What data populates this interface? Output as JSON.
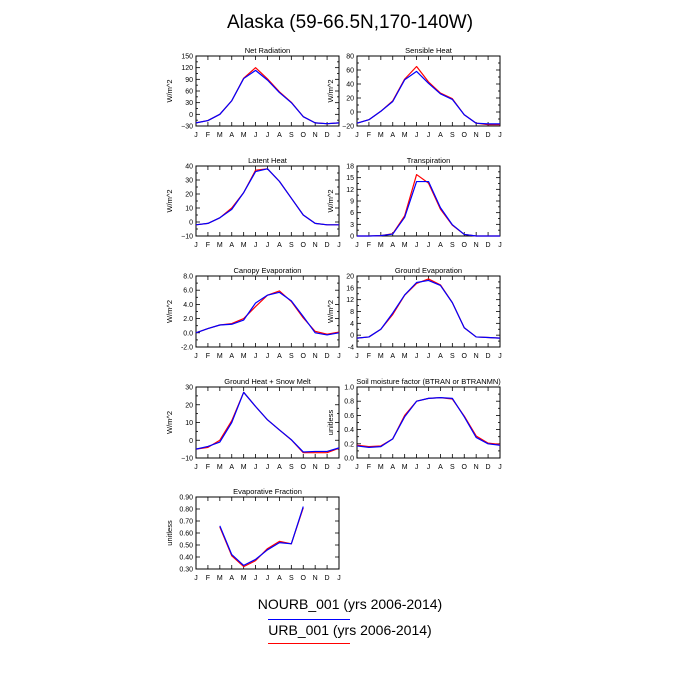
{
  "title": "Alaska (59-66.5N,170-140W)",
  "months": [
    "J",
    "F",
    "M",
    "A",
    "M",
    "J",
    "J",
    "A",
    "S",
    "O",
    "N",
    "D",
    "J"
  ],
  "legend": [
    {
      "name": "NOURB_001 (yrs 2006-2014)",
      "color": "#0000ff"
    },
    {
      "name": "URB_001 (yrs 2006-2014)",
      "color": "#ff0000"
    }
  ],
  "chart_data": [
    {
      "type": "line",
      "title": "Net Radiation",
      "ylabel": "W/m^2",
      "ylim": [
        -30,
        150
      ],
      "yticks": [
        -30,
        -15,
        0,
        15,
        30,
        45,
        60,
        75,
        90,
        105,
        120,
        135,
        150
      ],
      "ytick_labels": [
        "−30",
        "",
        "0",
        "",
        "30",
        "",
        "60",
        "",
        "90",
        "",
        "120",
        "",
        "150"
      ],
      "series": [
        {
          "color": "#ff0000",
          "values": [
            -22,
            -16,
            0,
            35,
            93,
            120,
            91,
            58,
            31,
            -6,
            -22,
            -24,
            -22
          ]
        },
        {
          "color": "#0000ff",
          "values": [
            -22,
            -16,
            0,
            35,
            92,
            113,
            88,
            56,
            30,
            -6,
            -22,
            -24,
            -22
          ]
        }
      ]
    },
    {
      "type": "line",
      "title": "Sensible Heat",
      "ylabel": "W/m^2",
      "ylim": [
        -20,
        80
      ],
      "yticks": [
        -20,
        -10,
        0,
        10,
        20,
        30,
        40,
        50,
        60,
        70,
        80
      ],
      "ytick_labels": [
        "−20",
        "",
        "0",
        "",
        "20",
        "",
        "40",
        "",
        "60",
        "",
        "80"
      ],
      "series": [
        {
          "color": "#ff0000",
          "values": [
            -16,
            -11,
            1,
            16,
            47,
            65,
            43,
            27,
            19,
            -4,
            -16,
            -18,
            -18
          ]
        },
        {
          "color": "#0000ff",
          "values": [
            -16,
            -11,
            1,
            15,
            46,
            58,
            41,
            26,
            18,
            -4,
            -16,
            -17,
            -17
          ]
        }
      ]
    },
    {
      "type": "line",
      "title": "Latent Heat",
      "ylabel": "W/m^2",
      "ylim": [
        -10,
        40
      ],
      "yticks": [
        -10,
        -5,
        0,
        5,
        10,
        15,
        20,
        25,
        30,
        35,
        40
      ],
      "ytick_labels": [
        "−10",
        "",
        "0",
        "",
        "10",
        "",
        "20",
        "",
        "30",
        "",
        "40"
      ],
      "series": [
        {
          "color": "#ff0000",
          "values": [
            -2,
            -1,
            3,
            10,
            21,
            37,
            38,
            29,
            17,
            5,
            -1,
            -2,
            -2
          ]
        },
        {
          "color": "#0000ff",
          "values": [
            -2,
            -1,
            3,
            9,
            21,
            36,
            38,
            29,
            17,
            5,
            -1,
            -2,
            -2
          ]
        }
      ]
    },
    {
      "type": "line",
      "title": "Transpiration",
      "ylabel": "W/m^2",
      "ylim": [
        0,
        18
      ],
      "yticks": [
        0,
        1.5,
        3,
        4.5,
        6,
        7.5,
        9,
        10.5,
        12,
        13.5,
        15,
        16.5,
        18
      ],
      "ytick_labels": [
        "0",
        "",
        "3",
        "",
        "6",
        "",
        "9",
        "",
        "12",
        "",
        "15",
        "",
        "18"
      ],
      "series": [
        {
          "color": "#ff0000",
          "values": [
            0,
            0,
            0.1,
            0.6,
            5.2,
            15.8,
            13.6,
            6.9,
            2.8,
            0.4,
            0,
            0,
            0
          ]
        },
        {
          "color": "#0000ff",
          "values": [
            0,
            0,
            0.1,
            0.5,
            4.8,
            14,
            14,
            7.3,
            2.9,
            0.4,
            0,
            0,
            0
          ]
        }
      ]
    },
    {
      "type": "line",
      "title": "Canopy Evaporation",
      "ylabel": "W/m^2",
      "ylim": [
        -2,
        8
      ],
      "yticks": [
        -2,
        -1,
        0,
        1,
        2,
        3,
        4,
        5,
        6,
        7,
        8
      ],
      "ytick_labels": [
        "-2.0",
        "",
        "0.0",
        "",
        "2.0",
        "",
        "4.0",
        "",
        "6.0",
        "",
        "8.0"
      ],
      "series": [
        {
          "color": "#ff0000",
          "values": [
            0,
            0.6,
            1.1,
            1.3,
            2.0,
            3.7,
            5.3,
            5.9,
            4.4,
            2.1,
            0.2,
            -0.2,
            0.1
          ]
        },
        {
          "color": "#0000ff",
          "values": [
            0,
            0.6,
            1.1,
            1.2,
            1.8,
            4.2,
            5.3,
            5.7,
            4.5,
            2.3,
            0,
            -0.3,
            0
          ]
        }
      ]
    },
    {
      "type": "line",
      "title": "Ground Evaporation",
      "ylabel": "W/m^2",
      "ylim": [
        -4,
        20
      ],
      "yticks": [
        -4,
        -2,
        0,
        2,
        4,
        6,
        8,
        10,
        12,
        14,
        16,
        18,
        20
      ],
      "ytick_labels": [
        "-4",
        "",
        "0",
        "",
        "4",
        "",
        "8",
        "",
        "12",
        "",
        "16",
        "",
        "20"
      ],
      "series": [
        {
          "color": "#ff0000",
          "values": [
            -1,
            -0.6,
            2,
            7,
            13.5,
            17.5,
            19,
            17,
            11,
            2.5,
            -0.6,
            -0.8,
            -1
          ]
        },
        {
          "color": "#0000ff",
          "values": [
            -1,
            -0.6,
            2,
            7.5,
            13.6,
            17.8,
            18.5,
            16.8,
            11,
            2.5,
            -0.6,
            -0.8,
            -1
          ]
        }
      ]
    },
    {
      "type": "line",
      "title": "Ground Heat + Snow Melt",
      "ylabel": "W/m^2",
      "ylim": [
        -10,
        30
      ],
      "yticks": [
        -10,
        -5,
        0,
        5,
        10,
        15,
        20,
        25,
        30
      ],
      "ytick_labels": [
        "−10",
        "",
        "0",
        "",
        "10",
        "",
        "20",
        "",
        "30"
      ],
      "series": [
        {
          "color": "#ff0000",
          "values": [
            -5,
            -4,
            0,
            11,
            27,
            19,
            11.5,
            5.8,
            0.2,
            -7,
            -7,
            -7,
            -4.5
          ]
        },
        {
          "color": "#0000ff",
          "values": [
            -5,
            -3.5,
            -1,
            10,
            27,
            19,
            11.5,
            5.8,
            0.3,
            -6.6,
            -6.3,
            -6.3,
            -4.3
          ]
        }
      ]
    },
    {
      "type": "line",
      "title": "Soil moisture factor (BTRAN or BTRANMN)",
      "ylabel": "unitless",
      "ylim": [
        0,
        1
      ],
      "yticks": [
        0,
        0.1,
        0.2,
        0.3,
        0.4,
        0.5,
        0.6,
        0.7,
        0.8,
        0.9,
        1.0
      ],
      "ytick_labels": [
        "0.0",
        "",
        "0.2",
        "",
        "0.4",
        "",
        "0.6",
        "",
        "0.8",
        "",
        "1.0"
      ],
      "series": [
        {
          "color": "#ff0000",
          "values": [
            0.18,
            0.16,
            0.17,
            0.27,
            0.6,
            0.8,
            0.84,
            0.85,
            0.83,
            0.59,
            0.31,
            0.21,
            0.19
          ]
        },
        {
          "color": "#0000ff",
          "values": [
            0.17,
            0.15,
            0.16,
            0.27,
            0.58,
            0.8,
            0.84,
            0.85,
            0.84,
            0.58,
            0.29,
            0.2,
            0.18
          ]
        }
      ]
    },
    {
      "type": "line",
      "title": "Evaporative Fraction",
      "ylabel": "unitless",
      "ylim": [
        0.3,
        0.9
      ],
      "yticks": [
        0.3,
        0.4,
        0.5,
        0.6,
        0.7,
        0.8,
        0.9
      ],
      "ytick_labels": [
        "0.30",
        "0.40",
        "0.50",
        "0.60",
        "0.70",
        "0.80",
        "0.90"
      ],
      "series": [
        {
          "color": "#ff0000",
          "values": [
            null,
            null,
            0.65,
            0.41,
            0.32,
            0.37,
            0.47,
            0.53,
            0.51,
            0.81,
            null,
            null,
            null
          ]
        },
        {
          "color": "#0000ff",
          "values": [
            null,
            null,
            0.66,
            0.42,
            0.33,
            0.38,
            0.46,
            0.52,
            0.51,
            0.82,
            null,
            null,
            null
          ]
        }
      ]
    }
  ]
}
